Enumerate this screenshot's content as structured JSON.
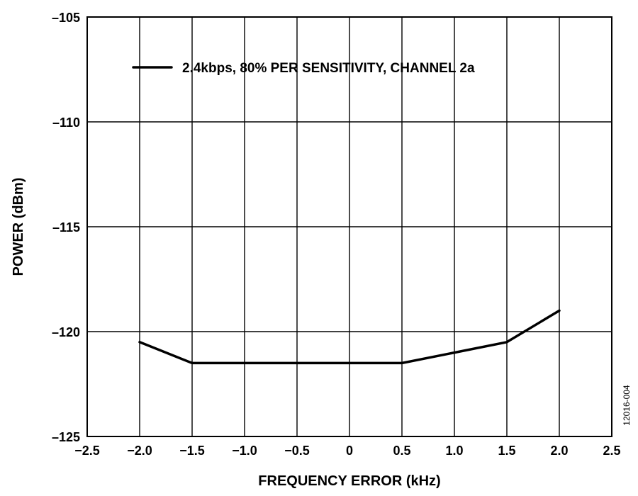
{
  "chart_data": {
    "type": "line",
    "title": "",
    "xlabel": "FREQUENCY ERROR (kHz)",
    "ylabel": "POWER (dBm)",
    "xlim": [
      -2.5,
      2.5
    ],
    "ylim": [
      -125,
      -105
    ],
    "x_ticks": [
      -2.5,
      -2.0,
      -1.5,
      -1.0,
      -0.5,
      0,
      0.5,
      1.0,
      1.5,
      2.0,
      2.5
    ],
    "x_tick_labels": [
      "−2.5",
      "−2.0",
      "−1.5",
      "−1.0",
      "−0.5",
      "0",
      "0.5",
      "1.0",
      "1.5",
      "2.0",
      "2.5"
    ],
    "y_ticks": [
      -105,
      -110,
      -115,
      -120,
      -125
    ],
    "y_tick_labels": [
      "–105",
      "–110",
      "–115",
      "–120",
      "–125"
    ],
    "grid": true,
    "legend_position": "top",
    "series": [
      {
        "name": "2.4kbps, 80% PER SENSITIVITY, CHANNEL 2a",
        "x": [
          -2.0,
          -1.5,
          -1.0,
          -0.5,
          0,
          0.5,
          1.0,
          1.5,
          2.0
        ],
        "y": [
          -120.5,
          -121.5,
          -121.5,
          -121.5,
          -121.5,
          -121.5,
          -121.0,
          -120.5,
          -119.0
        ],
        "color": "#000000"
      }
    ],
    "figure_id": "12016-004"
  }
}
